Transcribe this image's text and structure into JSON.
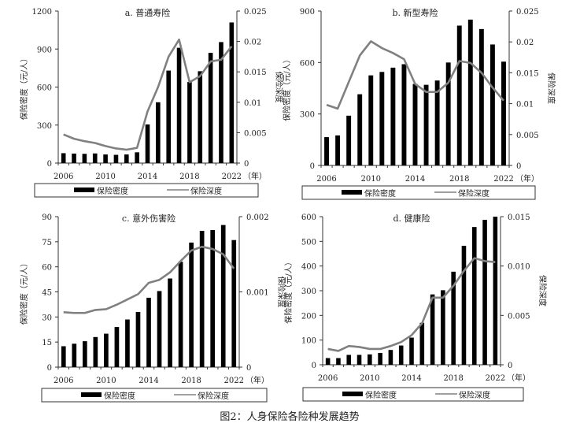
{
  "figure_caption": "图2：人身保险各险种发展趋势",
  "chart_data": [
    {
      "type": "bar+line",
      "title": "a. 普通寿险",
      "xlabel_unit": "（年）",
      "ylabel": "保险密度（元/人）",
      "y2label": "保险深度",
      "ylim": [
        0,
        1200
      ],
      "yticks": [
        "0",
        "300",
        "600",
        "900",
        "1200"
      ],
      "y2lim": [
        0,
        0.025
      ],
      "y2ticks": [
        "0",
        "0.005",
        "0.01",
        "0.015",
        "0.02",
        "0.025"
      ],
      "xticks": [
        "2006",
        "2010",
        "2014",
        "2018",
        "2022"
      ],
      "x": [
        2006,
        2007,
        2008,
        2009,
        2010,
        2011,
        2012,
        2013,
        2014,
        2015,
        2016,
        2017,
        2018,
        2019,
        2020,
        2021,
        2022
      ],
      "series": [
        {
          "name": "保险密度",
          "type": "bar",
          "color": "#000000",
          "values": [
            78,
            75,
            73,
            76,
            68,
            65,
            68,
            85,
            305,
            480,
            730,
            910,
            640,
            725,
            870,
            955,
            1110
          ]
        },
        {
          "name": "保险深度",
          "type": "line",
          "axis": "right",
          "color": "#808080",
          "values": [
            0.0047,
            0.004,
            0.0036,
            0.0033,
            0.0028,
            0.0024,
            0.0022,
            0.0025,
            0.0085,
            0.0125,
            0.0175,
            0.0203,
            0.0133,
            0.0143,
            0.0167,
            0.017,
            0.0192
          ]
        }
      ],
      "legend": [
        "保险密度",
        "保险深度"
      ],
      "legend_position": "bottom"
    },
    {
      "type": "bar+line",
      "title": "b. 新型寿险",
      "xlabel_unit": "（年）",
      "ylabel": "保险密度（元/人）",
      "y2label": "保险深度",
      "ylim": [
        0,
        900
      ],
      "yticks": [
        "0",
        "300",
        "600",
        "900"
      ],
      "y2lim": [
        0,
        0.025
      ],
      "y2ticks": [
        "0",
        "0.005",
        "0.01",
        "0.015",
        "0.02",
        "0.025"
      ],
      "xticks": [
        "2006",
        "2010",
        "2014",
        "2018",
        "2022"
      ],
      "x": [
        2006,
        2007,
        2008,
        2009,
        2010,
        2011,
        2012,
        2013,
        2014,
        2015,
        2016,
        2017,
        2018,
        2019,
        2020,
        2021,
        2022
      ],
      "series": [
        {
          "name": "保险密度",
          "type": "bar",
          "color": "#000000",
          "values": [
            165,
            175,
            290,
            415,
            525,
            545,
            570,
            590,
            475,
            470,
            495,
            600,
            815,
            850,
            795,
            705,
            605
          ]
        },
        {
          "name": "保险深度",
          "type": "line",
          "axis": "right",
          "color": "#808080",
          "values": [
            0.0098,
            0.0092,
            0.0135,
            0.0178,
            0.0201,
            0.019,
            0.0182,
            0.0172,
            0.0132,
            0.0119,
            0.0119,
            0.0134,
            0.0169,
            0.0166,
            0.015,
            0.0126,
            0.0105
          ]
        }
      ],
      "legend": [
        "保险密度",
        "保险深度"
      ],
      "legend_position": "bottom"
    },
    {
      "type": "bar+line",
      "title": "c. 意外伤害险",
      "xlabel_unit": "（年）",
      "ylabel": "保险密度（元/人）",
      "y2label": "保险深度",
      "ylim": [
        0,
        90
      ],
      "yticks": [
        "0",
        "15",
        "30",
        "45",
        "60",
        "75",
        "90"
      ],
      "y2lim": [
        0,
        0.002
      ],
      "y2ticks": [
        "0",
        "0.001",
        "0.002"
      ],
      "xticks": [
        "2006",
        "2010",
        "2014",
        "2018",
        "2022"
      ],
      "x": [
        2006,
        2007,
        2008,
        2009,
        2010,
        2011,
        2012,
        2013,
        2014,
        2015,
        2016,
        2017,
        2018,
        2019,
        2020,
        2021,
        2022
      ],
      "series": [
        {
          "name": "保险密度",
          "type": "bar",
          "color": "#000000",
          "values": [
            12.5,
            14,
            15.5,
            18,
            20,
            24,
            28.5,
            33,
            41.5,
            45.5,
            53,
            63,
            74.5,
            81.5,
            82,
            85,
            76
          ]
        },
        {
          "name": "保险深度",
          "type": "line",
          "axis": "right",
          "color": "#808080",
          "values": [
            0.00073,
            0.00072,
            0.00072,
            0.00076,
            0.00077,
            0.00083,
            0.0009,
            0.00097,
            0.00112,
            0.00116,
            0.00126,
            0.00141,
            0.00155,
            0.0016,
            0.00157,
            0.0015,
            0.00131
          ]
        }
      ],
      "legend": [
        "保险密度",
        "保险深度"
      ],
      "legend_position": "bottom"
    },
    {
      "type": "bar+line",
      "title": "d. 健康险",
      "xlabel_unit": "（年）",
      "ylabel": "保险密度（元/人）",
      "y2label": "保险深度",
      "ylim": [
        0,
        600
      ],
      "yticks": [
        "0",
        "100",
        "200",
        "300",
        "400",
        "500",
        "600"
      ],
      "y2lim": [
        0,
        0.015
      ],
      "y2ticks": [
        "0",
        "0.005",
        "0.010",
        "0.015"
      ],
      "xticks": [
        "2006",
        "2010",
        "2014",
        "2018",
        "2022"
      ],
      "x": [
        2006,
        2007,
        2008,
        2009,
        2010,
        2011,
        2012,
        2013,
        2014,
        2015,
        2016,
        2017,
        2018,
        2019,
        2020,
        2021,
        2022
      ],
      "series": [
        {
          "name": "保险密度",
          "type": "bar",
          "color": "#000000",
          "values": [
            27,
            27,
            40,
            40,
            42,
            48,
            60,
            78,
            110,
            170,
            285,
            302,
            377,
            482,
            558,
            587,
            600
          ]
        },
        {
          "name": "保险深度",
          "type": "line",
          "axis": "right",
          "color": "#808080",
          "values": [
            0.0016,
            0.0014,
            0.0019,
            0.0018,
            0.0016,
            0.0016,
            0.0019,
            0.0023,
            0.003,
            0.0042,
            0.0068,
            0.0068,
            0.008,
            0.0095,
            0.0108,
            0.0105,
            0.0104
          ]
        }
      ],
      "legend": [
        "保险密度",
        "保险深度"
      ],
      "legend_position": "bottom"
    }
  ]
}
